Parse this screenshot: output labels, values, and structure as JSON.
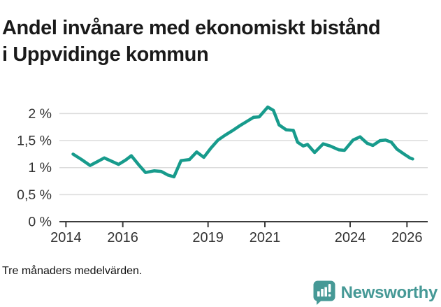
{
  "title": "Andel invånare med ekonomiskt bistånd i Uppvidinge kommun",
  "footnote": "Tre månaders medelvärden.",
  "logo": {
    "text": "Newsworthy",
    "icon": "newsworthy-speech-bubble-chart-icon",
    "color": "#469996"
  },
  "colors": {
    "line": "#179b8c",
    "grid": "#dcdcdc",
    "axis": "#3c3c3c",
    "tick_text": "#333333",
    "title_text": "#1a1a1a"
  },
  "chart_data": {
    "type": "line",
    "title": "Andel invånare med ekonomiskt bistånd i Uppvidinge kommun",
    "subtitle": "",
    "xlabel": "",
    "ylabel": "",
    "unit": "%",
    "grid": "horizontal",
    "legend": "none",
    "xlim": [
      2013.77,
      2026.73
    ],
    "ylim": [
      0,
      2.29
    ],
    "x_ticks": [
      2014,
      2016,
      2019,
      2021,
      2024,
      2026
    ],
    "y_ticks": [
      0,
      0.5,
      1,
      1.5,
      2
    ],
    "y_tick_labels": [
      "0 %",
      "0,5 %",
      "1 %",
      "1,5 %",
      "2 %"
    ],
    "series": [
      {
        "name": "Andel invånare med ekonomiskt bistånd, Uppvidinge kommun",
        "x": [
          2014.25,
          2014.55,
          2014.85,
          2015.1,
          2015.35,
          2015.6,
          2015.85,
          2016.1,
          2016.3,
          2016.55,
          2016.8,
          2017.1,
          2017.35,
          2017.6,
          2017.8,
          2018.05,
          2018.35,
          2018.6,
          2018.85,
          2019.1,
          2019.35,
          2019.6,
          2019.85,
          2020.1,
          2020.35,
          2020.6,
          2020.8,
          2021.1,
          2021.3,
          2021.5,
          2021.75,
          2022.0,
          2022.15,
          2022.35,
          2022.5,
          2022.75,
          2023.05,
          2023.3,
          2023.6,
          2023.8,
          2024.1,
          2024.35,
          2024.6,
          2024.8,
          2025.05,
          2025.25,
          2025.45,
          2025.65,
          2025.9,
          2026.1,
          2026.2
        ],
        "y": [
          1.25,
          1.15,
          1.04,
          1.11,
          1.18,
          1.12,
          1.06,
          1.14,
          1.22,
          1.06,
          0.91,
          0.94,
          0.93,
          0.86,
          0.83,
          1.13,
          1.15,
          1.29,
          1.19,
          1.36,
          1.51,
          1.6,
          1.68,
          1.77,
          1.85,
          1.93,
          1.94,
          2.12,
          2.06,
          1.79,
          1.7,
          1.69,
          1.47,
          1.4,
          1.43,
          1.28,
          1.44,
          1.4,
          1.33,
          1.32,
          1.51,
          1.57,
          1.45,
          1.41,
          1.5,
          1.51,
          1.47,
          1.34,
          1.25,
          1.18,
          1.16
        ]
      }
    ]
  }
}
